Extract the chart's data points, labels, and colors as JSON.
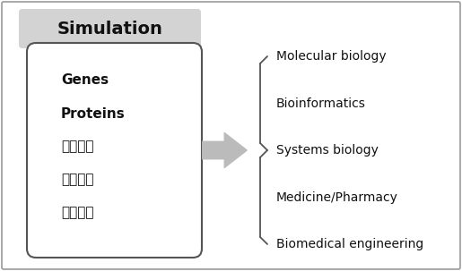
{
  "title": "Simulation",
  "title_box_color": "#d3d3d3",
  "left_box_items_bold": [
    "Genes",
    "Proteins"
  ],
  "left_box_items_normal": [
    "가상세포",
    "가상조직",
    "가상장기"
  ],
  "right_items": [
    "Molecular biology",
    "Bioinformatics",
    "Systems biology",
    "Medicine/Pharmacy",
    "Biomedical engineering"
  ],
  "bg_color": "#ffffff",
  "border_color": "#555555",
  "text_color": "#111111",
  "arrow_color": "#bbbbbb",
  "outer_border_color": "#999999",
  "figsize": [
    5.15,
    3.03
  ],
  "dpi": 100
}
